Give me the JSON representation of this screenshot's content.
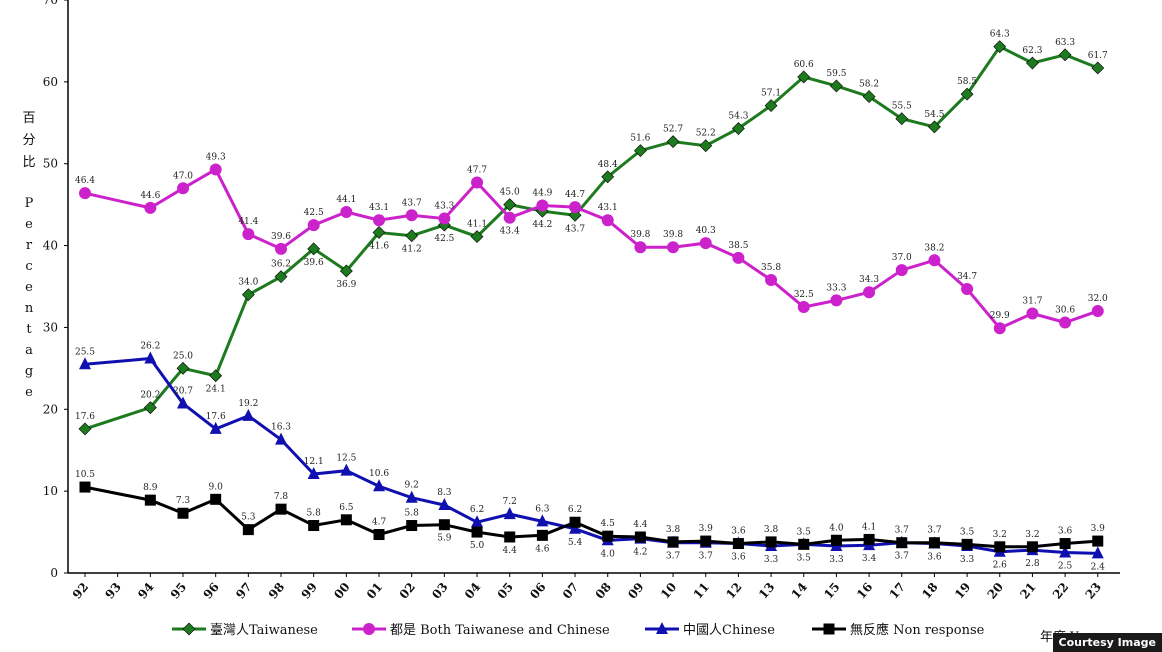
{
  "chart_data": {
    "type": "line",
    "categories": [
      "92",
      "93",
      "94",
      "95",
      "96",
      "97",
      "98",
      "99",
      "00",
      "01",
      "02",
      "03",
      "04",
      "05",
      "06",
      "07",
      "08",
      "09",
      "10",
      "11",
      "12",
      "13",
      "14",
      "15",
      "16",
      "17",
      "18",
      "19",
      "20",
      "21",
      "22",
      "23"
    ],
    "xlabel": "年度 Year",
    "ylabel_cn": [
      "百",
      "分",
      "比"
    ],
    "ylabel_en": [
      "P",
      "e",
      "r",
      "c",
      "e",
      "n",
      "t",
      "a",
      "g",
      "e"
    ],
    "ylim": [
      0,
      70
    ],
    "yticks": [
      "0",
      "10",
      "20",
      "30",
      "40",
      "50",
      "60",
      "70"
    ],
    "grid": false,
    "legend_position": "bottom",
    "series": [
      {
        "name": "臺灣人Taiwanese",
        "color": "#1e7a1e",
        "marker": "diamond",
        "label_offsets": [
          -1,
          -1,
          -1,
          -1,
          1,
          -1,
          -1,
          1,
          1,
          1,
          1,
          1,
          -1,
          -1,
          1,
          1,
          -1,
          -1,
          -1,
          -1,
          -1,
          -1,
          -1,
          -1,
          -1,
          -1,
          -1,
          -1,
          -1,
          -1,
          -1,
          -1
        ],
        "values": [
          17.6,
          null,
          20.2,
          25.0,
          24.1,
          34.0,
          36.2,
          39.6,
          36.9,
          41.6,
          41.2,
          42.5,
          41.1,
          45.0,
          44.2,
          43.7,
          48.4,
          51.6,
          52.7,
          52.2,
          54.3,
          57.1,
          60.6,
          59.5,
          58.2,
          55.5,
          54.5,
          58.5,
          64.3,
          62.3,
          63.3,
          61.7
        ]
      },
      {
        "name": "都是 Both Taiwanese and Chinese",
        "color": "#cc22cc",
        "marker": "circle",
        "label_offsets": [
          -1,
          -1,
          -1,
          -1,
          -1,
          -1,
          -1,
          -1,
          -1,
          -1,
          -1,
          -1,
          -1,
          1,
          -1,
          -1,
          -1,
          -1,
          -1,
          -1,
          -1,
          -1,
          -1,
          -1,
          -1,
          -1,
          -1,
          -1,
          -1,
          -1,
          -1,
          -1
        ],
        "values": [
          46.4,
          null,
          44.6,
          47.0,
          49.3,
          41.4,
          39.6,
          42.5,
          44.1,
          43.1,
          43.7,
          43.3,
          47.7,
          43.4,
          44.9,
          44.7,
          43.1,
          39.8,
          39.8,
          40.3,
          38.5,
          35.8,
          32.5,
          33.3,
          34.3,
          37.0,
          38.2,
          34.7,
          29.9,
          31.7,
          30.6,
          32.0
        ]
      },
      {
        "name": "中國人Chinese",
        "color": "#1010b0",
        "marker": "triangle",
        "label_offsets": [
          -1,
          -1,
          -1,
          -1,
          -1,
          -1,
          -1,
          -1,
          -1,
          -1,
          -1,
          -1,
          -1,
          -1,
          -1,
          1,
          1,
          1,
          1,
          1,
          1,
          1,
          1,
          1,
          1,
          1,
          1,
          1,
          1,
          1,
          1,
          1
        ],
        "values": [
          25.5,
          null,
          26.2,
          20.7,
          17.6,
          19.2,
          16.3,
          12.1,
          12.5,
          10.6,
          9.2,
          8.3,
          6.2,
          7.2,
          6.3,
          5.4,
          4.0,
          4.2,
          3.7,
          3.7,
          3.6,
          3.3,
          3.5,
          3.3,
          3.4,
          3.7,
          3.6,
          3.3,
          2.6,
          2.8,
          2.5,
          2.4
        ]
      },
      {
        "name": "無反應 Non response",
        "color": "#000000",
        "marker": "square",
        "label_offsets": [
          -1,
          -1,
          -1,
          -1,
          -1,
          -1,
          -1,
          -1,
          -1,
          -1,
          -1,
          1,
          1,
          1,
          1,
          -1,
          -1,
          -1,
          -1,
          -1,
          -1,
          -1,
          -1,
          -1,
          -1,
          -1,
          -1,
          -1,
          -1,
          -1,
          -1,
          -1
        ],
        "values": [
          10.5,
          null,
          8.9,
          7.3,
          9.0,
          5.3,
          7.8,
          5.8,
          6.5,
          4.7,
          5.8,
          5.9,
          5.0,
          4.4,
          4.6,
          6.2,
          4.5,
          4.4,
          3.8,
          3.9,
          3.6,
          3.8,
          3.5,
          4.0,
          4.1,
          3.7,
          3.7,
          3.5,
          3.2,
          3.2,
          3.6,
          3.9
        ]
      }
    ]
  },
  "footer": {
    "courtesy": "Courtesy Image"
  }
}
